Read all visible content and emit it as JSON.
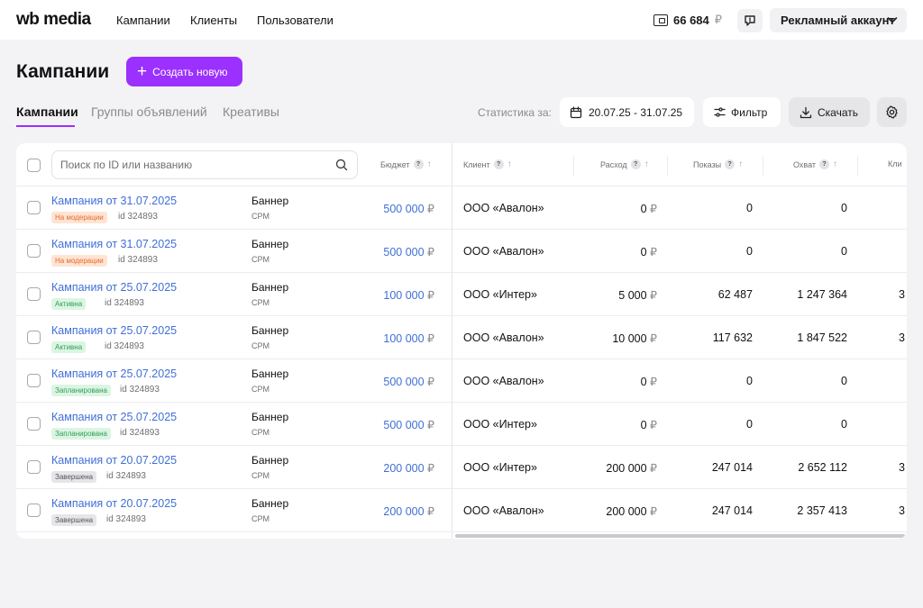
{
  "topbar": {
    "logo_wb": "wb",
    "logo_media": "media",
    "nav": [
      "Кампании",
      "Клиенты",
      "Пользователи"
    ],
    "balance_value": "66 684",
    "currency": "₽",
    "account_label": "Рекламный аккаунт"
  },
  "header": {
    "title": "Кампании",
    "create_label": "Создать новую"
  },
  "tabs": [
    "Кампании",
    "Группы объявлений",
    "Креативы"
  ],
  "toolbar": {
    "stat_label": "Статистика за:",
    "date_range": "20.07.25 - 31.07.25",
    "filter_label": "Фильтр",
    "download_label": "Скачать"
  },
  "table": {
    "search_placeholder": "Поиск по ID или названию",
    "columns": {
      "budget": "Бюджет",
      "client": "Клиент",
      "spend": "Расход",
      "shows": "Показы",
      "reach": "Охват",
      "clicks": "Кли"
    },
    "rows": [
      {
        "name": "Кампания от 31.07.2025",
        "status": "На модерации",
        "status_kind": "moderation",
        "id": "id 324893",
        "type": "Баннер",
        "model": "CPM",
        "budget": "500 000",
        "client": "ООО «Авалон»",
        "spend": "0",
        "shows": "0",
        "reach": "0",
        "clicks": ""
      },
      {
        "name": "Кампания от 31.07.2025",
        "status": "На модерации",
        "status_kind": "moderation",
        "id": "id 324893",
        "type": "Баннер",
        "model": "CPM",
        "budget": "500 000",
        "client": "ООО «Авалон»",
        "spend": "0",
        "shows": "0",
        "reach": "0",
        "clicks": ""
      },
      {
        "name": "Кампания от 25.07.2025",
        "status": "Активна",
        "status_kind": "active",
        "id": "id 324893",
        "type": "Баннер",
        "model": "CPM",
        "budget": "100 000",
        "client": "ООО «Интер»",
        "spend": "5 000",
        "shows": "62 487",
        "reach": "1 247 364",
        "clicks": "3"
      },
      {
        "name": "Кампания от 25.07.2025",
        "status": "Активна",
        "status_kind": "active",
        "id": "id 324893",
        "type": "Баннер",
        "model": "CPM",
        "budget": "100 000",
        "client": "ООО «Авалон»",
        "spend": "10 000",
        "shows": "117 632",
        "reach": "1 847 522",
        "clicks": "3"
      },
      {
        "name": "Кампания от 25.07.2025",
        "status": "Запланирована",
        "status_kind": "planned",
        "id": "id 324893",
        "type": "Баннер",
        "model": "CPM",
        "budget": "500 000",
        "client": "ООО «Авалон»",
        "spend": "0",
        "shows": "0",
        "reach": "0",
        "clicks": ""
      },
      {
        "name": "Кампания от 25.07.2025",
        "status": "Запланирована",
        "status_kind": "planned",
        "id": "id 324893",
        "type": "Баннер",
        "model": "CPM",
        "budget": "500 000",
        "client": "ООО «Интер»",
        "spend": "0",
        "shows": "0",
        "reach": "0",
        "clicks": ""
      },
      {
        "name": "Кампания от 20.07.2025",
        "status": "Завершена",
        "status_kind": "finished",
        "id": "id 324893",
        "type": "Баннер",
        "model": "CPM",
        "budget": "200 000",
        "client": "ООО «Интер»",
        "spend": "200 000",
        "shows": "247 014",
        "reach": "2 652 112",
        "clicks": "3"
      },
      {
        "name": "Кампания от 20.07.2025",
        "status": "Завершена",
        "status_kind": "finished",
        "id": "id 324893",
        "type": "Баннер",
        "model": "CPM",
        "budget": "200 000",
        "client": "ООО «Авалон»",
        "spend": "200 000",
        "shows": "247 014",
        "reach": "2 357 413",
        "clicks": "3"
      }
    ]
  },
  "colors": {
    "accent": "#9b30ff",
    "link": "#3f6fd8",
    "background": "#f3f3f5"
  },
  "icons": [
    "wallet-icon",
    "chat-icon",
    "chevron-down-icon",
    "plus-icon",
    "calendar-icon",
    "filter-icon",
    "download-icon",
    "gear-icon",
    "search-icon",
    "help-icon",
    "sort-arrow-icon"
  ]
}
